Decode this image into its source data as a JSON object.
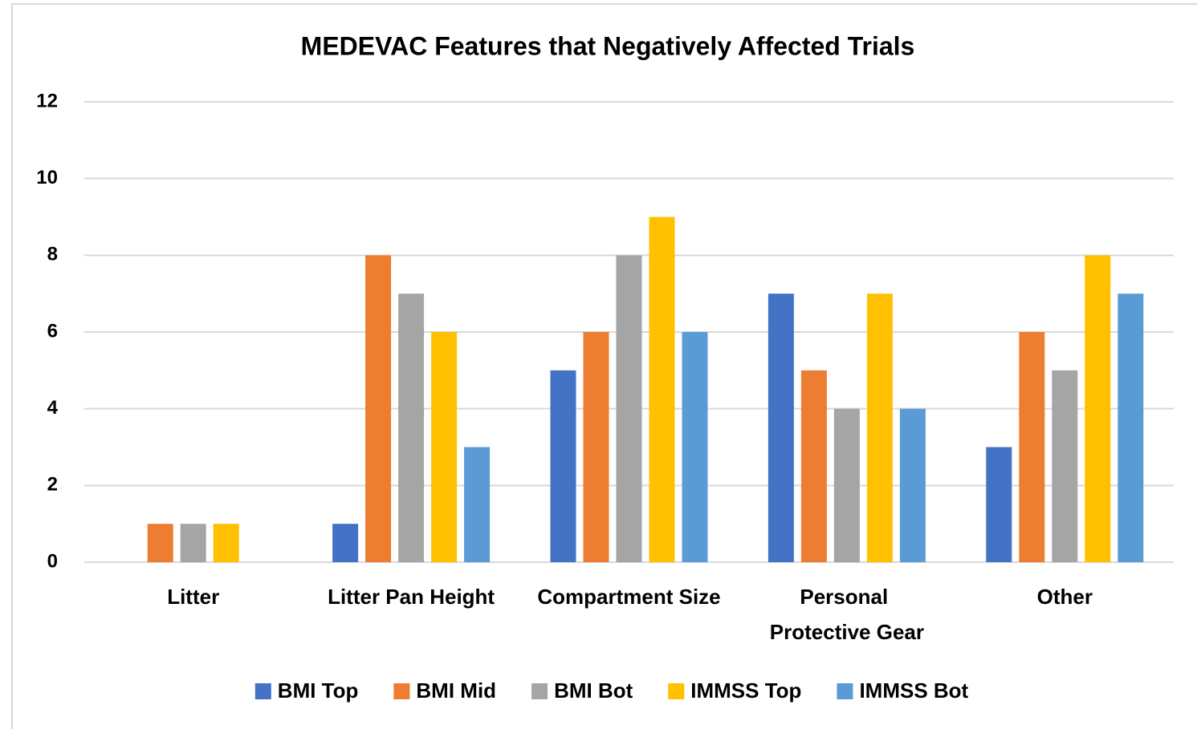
{
  "chart_data": {
    "type": "bar",
    "title": "MEDEVAC Features that Negatively Affected Trials",
    "categories": [
      "Litter",
      "Litter Pan Height",
      "Compartment Size",
      "Personal Protective Gear",
      "Other"
    ],
    "series": [
      {
        "name": "BMI Top",
        "color": "#4472c4",
        "values": [
          0,
          1,
          5,
          7,
          3
        ]
      },
      {
        "name": "BMI Mid",
        "color": "#ed7d31",
        "values": [
          1,
          8,
          6,
          5,
          6
        ]
      },
      {
        "name": "BMI Bot",
        "color": "#a5a5a5",
        "values": [
          1,
          7,
          8,
          4,
          5
        ]
      },
      {
        "name": "IMMSS Top",
        "color": "#ffc000",
        "values": [
          1,
          6,
          9,
          7,
          8
        ]
      },
      {
        "name": "IMMSS Bot",
        "color": "#5b9bd5",
        "values": [
          0,
          3,
          6,
          4,
          7
        ]
      }
    ],
    "ylim": [
      0,
      12
    ],
    "yticks": [
      0,
      2,
      4,
      6,
      8,
      10,
      12
    ],
    "grid": true,
    "legend": "bottom"
  }
}
